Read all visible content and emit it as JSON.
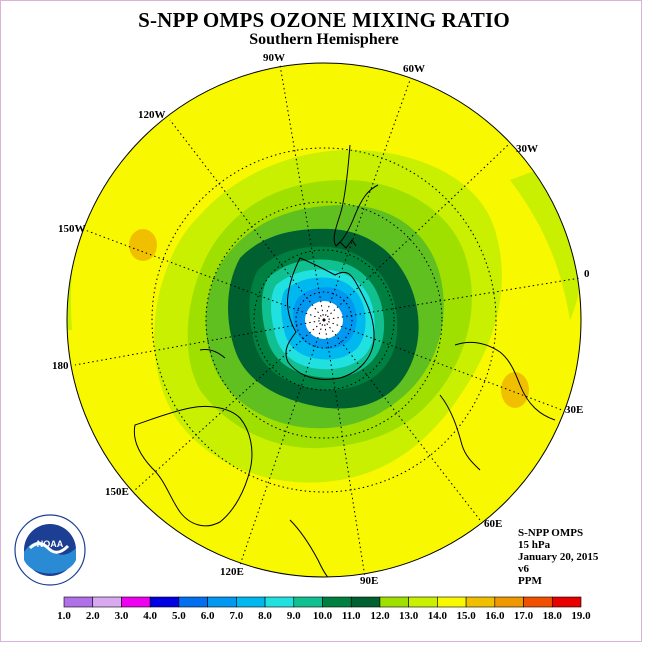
{
  "title": "S-NPP OMPS OZONE MIXING RATIO",
  "subtitle": "Southern Hemisphere",
  "longitude_labels": {
    "w90": "90W",
    "w60": "60W",
    "w30": "30W",
    "e0": "0",
    "e30": "30E",
    "e60": "60E",
    "e90": "90E",
    "e120": "120E",
    "e150": "150E",
    "e180": "180",
    "w150": "150W",
    "w120": "120W"
  },
  "info": {
    "instrument": "S-NPP OMPS",
    "level": "15 hPa",
    "date": "January 20, 2015",
    "version": "v6",
    "units": "PPM"
  },
  "logo": {
    "text": "NOAA",
    "ring_text": "NATIONAL OCEANIC AND ATMOSPHERIC ADMINISTRATION · U.S. DEPARTMENT OF COMMERCE"
  },
  "colorbar": {
    "labels": [
      "1.0",
      "2.0",
      "3.0",
      "4.0",
      "5.0",
      "6.0",
      "7.0",
      "8.0",
      "9.0",
      "10.0",
      "11.0",
      "12.0",
      "13.0",
      "14.0",
      "15.0",
      "16.0",
      "17.0",
      "18.0",
      "19.0"
    ],
    "colors": [
      "#b070e8",
      "#d8a8f0",
      "#f000f0",
      "#0000e0",
      "#0070f0",
      "#0098f0",
      "#00b8f0",
      "#20e0e0",
      "#10c090",
      "#008040",
      "#006030",
      "#a0e000",
      "#c8f000",
      "#f8f800",
      "#f0c000",
      "#f09800",
      "#f05000",
      "#e80000",
      "#905030"
    ]
  },
  "map_colors": {
    "yellow": "#f8f800",
    "yellow_green": "#c8f000",
    "green_light": "#a0e000",
    "green_mid": "#60c020",
    "green_dark": "#008040",
    "green_darkest": "#006030",
    "teal": "#10c090",
    "cyan_light": "#20e0e0",
    "cyan": "#00b8f0",
    "blue": "#0098f0",
    "orange": "#f0c000"
  }
}
